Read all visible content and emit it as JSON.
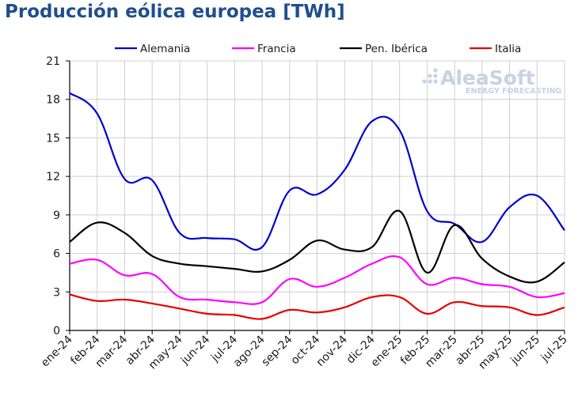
{
  "chart_data": {
    "type": "line",
    "title": "Producción eólica europea [TWh]",
    "categories": [
      "ene-24",
      "feb-24",
      "mar-24",
      "abr-24",
      "may-24",
      "jun-24",
      "jul-24",
      "ago-24",
      "sep-24",
      "oct-24",
      "nov-24",
      "dic-24",
      "ene-25",
      "feb-25",
      "mar-25",
      "abr-25",
      "may-25",
      "jun-25",
      "jul-25"
    ],
    "ylim": [
      0,
      21
    ],
    "yticks": [
      0,
      3,
      6,
      9,
      12,
      15,
      18,
      21
    ],
    "grid": true,
    "legend_position": "top",
    "series": [
      {
        "name": "Alemania",
        "color": "#0000cc",
        "values": [
          18.5,
          16.9,
          11.8,
          11.7,
          7.6,
          7.2,
          7.1,
          6.5,
          10.9,
          10.6,
          12.5,
          16.3,
          15.6,
          9.3,
          8.3,
          6.9,
          9.6,
          10.5,
          7.8
        ]
      },
      {
        "name": "Francia",
        "color": "#ff00ff",
        "values": [
          5.2,
          5.5,
          4.3,
          4.4,
          2.6,
          2.4,
          2.2,
          2.2,
          4.0,
          3.4,
          4.1,
          5.2,
          5.7,
          3.6,
          4.1,
          3.6,
          3.4,
          2.6,
          2.9
        ]
      },
      {
        "name": "Pen. Ibérica",
        "color": "#000000",
        "values": [
          6.9,
          8.4,
          7.6,
          5.8,
          5.2,
          5.0,
          4.8,
          4.6,
          5.5,
          7.0,
          6.3,
          6.5,
          9.3,
          4.5,
          8.2,
          5.6,
          4.2,
          3.8,
          5.3
        ]
      },
      {
        "name": "Italia",
        "color": "#e60000",
        "values": [
          2.8,
          2.3,
          2.4,
          2.1,
          1.7,
          1.3,
          1.2,
          0.9,
          1.6,
          1.4,
          1.8,
          2.6,
          2.6,
          1.3,
          2.2,
          1.9,
          1.8,
          1.2,
          1.8
        ]
      }
    ]
  },
  "watermark": {
    "brand": "AleaSoft",
    "tagline": "ENERGY FORECASTING",
    "color": "#c7d3e3"
  }
}
